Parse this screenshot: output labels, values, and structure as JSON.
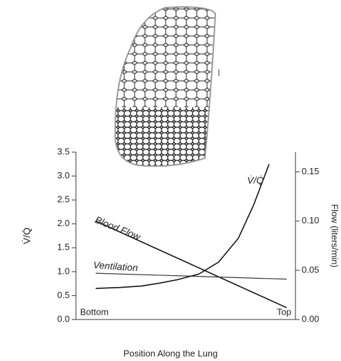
{
  "chart_data": {
    "type": "line",
    "xlabel": "Position Along the Lung",
    "ylabel": "V̇/Q̇",
    "y2label": "Flow (liters/min)",
    "xlim": [
      0,
      1
    ],
    "ylim": [
      0,
      3.5
    ],
    "yticks": [
      {
        "value": 0,
        "label": "0.0"
      },
      0.5,
      {
        "value": 1,
        "label": "1.0"
      },
      1.5,
      {
        "value": 2,
        "label": "2.0"
      },
      2.5,
      {
        "value": 3,
        "label": "3.0"
      },
      3.5
    ],
    "y2lim": [
      0,
      0.17
    ],
    "y2ticks": [
      {
        "value": 0,
        "label": "0.00"
      },
      0.05,
      {
        "value": 0.1,
        "label": "0.10"
      },
      0.15
    ],
    "series": [
      {
        "name": "Blood Flow",
        "color": "#111111",
        "axis": "y2",
        "x": [
          0.09,
          0.96
        ],
        "values": [
          0.1,
          0.012
        ]
      },
      {
        "name": "Ventilation",
        "color": "#333333",
        "axis": "y2",
        "x": [
          0.09,
          0.96
        ],
        "values": [
          0.047,
          0.041
        ]
      },
      {
        "name": "V̇/Q̇",
        "color": "#111111",
        "axis": "y",
        "x": [
          0.09,
          0.2,
          0.3,
          0.38,
          0.46,
          0.56,
          0.65,
          0.74,
          0.81,
          0.88
        ],
        "values": [
          0.65,
          0.67,
          0.7,
          0.76,
          0.83,
          0.95,
          1.2,
          1.7,
          2.4,
          3.25
        ]
      }
    ],
    "annotations": [
      "Bottom",
      "Top"
    ]
  }
}
